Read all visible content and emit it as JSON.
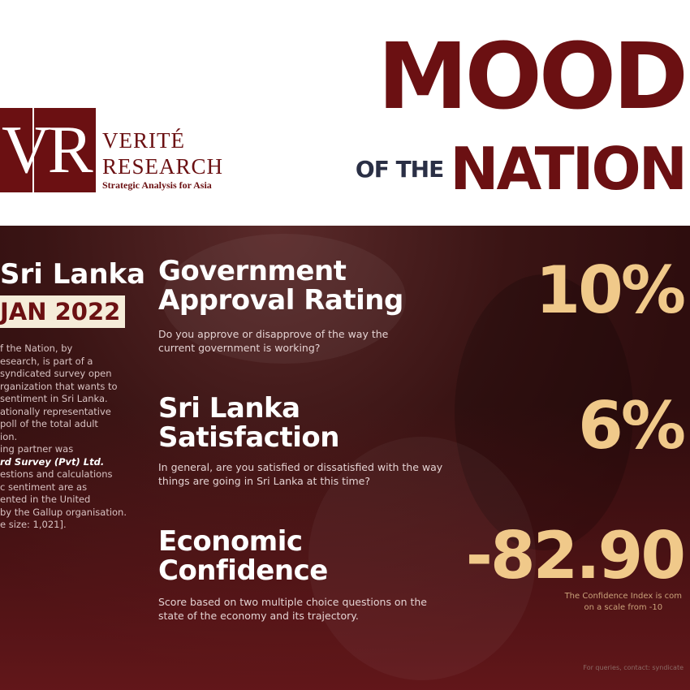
{
  "header": {
    "logo": {
      "initials": "VR",
      "name_line1": "VERITÉ",
      "name_line2": "RESEARCH",
      "tagline": "Strategic Analysis for Asia"
    },
    "title_big": "MOOD",
    "title_small": "OF THE",
    "title_end": "NATION"
  },
  "sidebar": {
    "country": "Sri Lanka",
    "date": "JAN 2022",
    "intro_lines": [
      "f the Nation, by",
      "esearch, is part of a",
      "syndicated survey open",
      "rganization that wants to",
      "sentiment in Sri Lanka.",
      "ationally representative",
      "poll of the total adult",
      "ion.",
      "ing partner was"
    ],
    "partner": "rd Survey (Pvt) Ltd.",
    "intro_lines2": [
      "estions and calculations",
      "c sentiment are as",
      "ented in the United",
      "by the Gallup organisation.",
      "e size: 1,021]."
    ]
  },
  "metrics": [
    {
      "title_line1": "Government",
      "title_line2": "Approval Rating",
      "question": "Do you approve or disapprove of the way the current government is working?",
      "value": "10%"
    },
    {
      "title_line1": "Sri Lanka",
      "title_line2": "Satisfaction",
      "question": "In general, are you satisfied or dissatisfied with the way things are going in Sri Lanka at this time?",
      "value": "6%"
    },
    {
      "title_line1": "Economic",
      "title_line2": "Confidence",
      "question": "Score based on two multiple choice questions on the state of the economy and its trajectory.",
      "value": "-82.90",
      "note_line1": "The Confidence Index is com",
      "note_line2": "on a scale from -10"
    }
  ],
  "footer": {
    "contact": "For queries, contact: syndicate"
  },
  "colors": {
    "maroon": "#6b1012",
    "cream": "#f0c98a",
    "navy": "#2a2f45"
  }
}
